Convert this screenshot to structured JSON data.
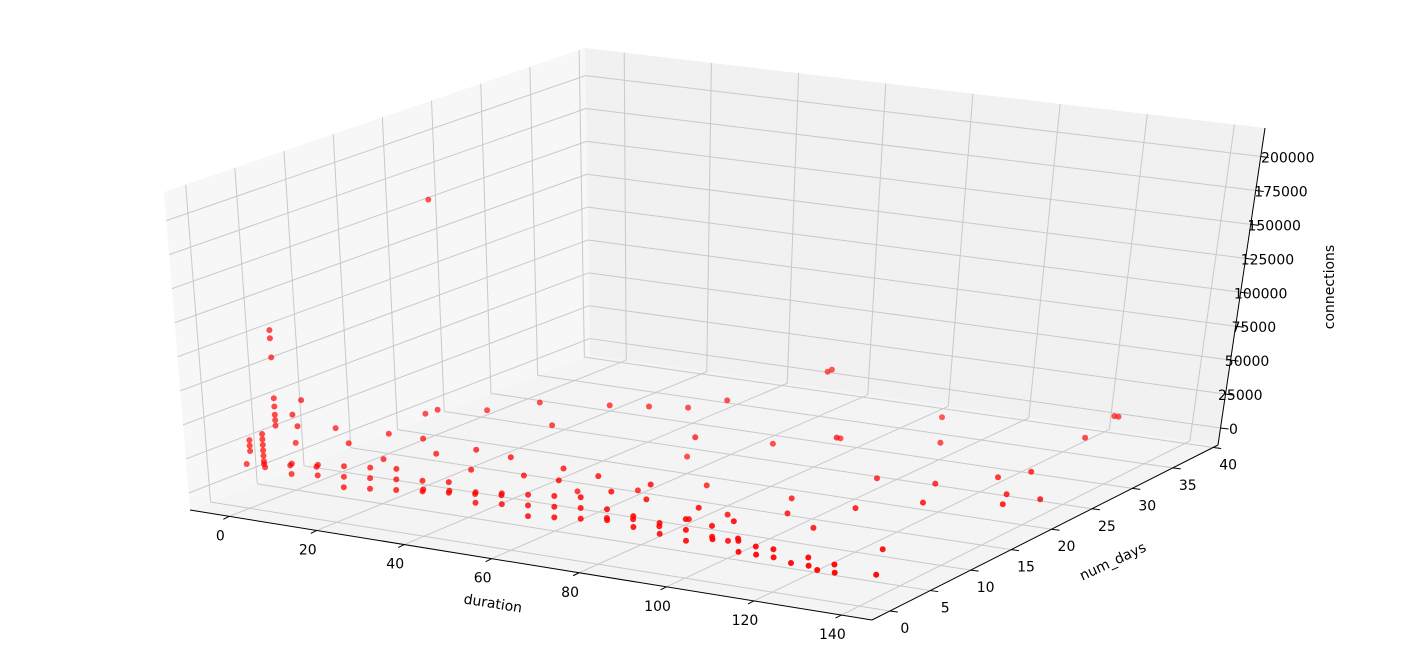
{
  "chart_data": {
    "type": "scatter",
    "projection": "3d",
    "title": "",
    "xlabel": "duration",
    "ylabel": "num_days",
    "zlabel": "connections",
    "xlim": [
      -9,
      147
    ],
    "ylim": [
      -2.2,
      40.6
    ],
    "zlim": [
      -12500,
      221000
    ],
    "xticks": [
      0,
      20,
      40,
      60,
      80,
      100,
      120,
      140
    ],
    "yticks": [
      0,
      5,
      10,
      15,
      20,
      25,
      30,
      35,
      40
    ],
    "zticks": [
      0,
      25000,
      50000,
      75000,
      100000,
      125000,
      150000,
      175000,
      200000
    ],
    "grid": true,
    "marker_color": "#ff0000",
    "points": [
      [
        0,
        0,
        20000
      ],
      [
        2,
        1,
        16000
      ],
      [
        4,
        0,
        22000
      ],
      [
        6,
        2,
        18000
      ],
      [
        8,
        1,
        14000
      ],
      [
        10,
        0,
        24000
      ],
      [
        12,
        2,
        20000
      ],
      [
        14,
        1,
        16000
      ],
      [
        16,
        0,
        26000
      ],
      [
        18,
        2,
        22000
      ],
      [
        20,
        1,
        18000
      ],
      [
        22,
        0,
        14000
      ],
      [
        24,
        2,
        24000
      ],
      [
        26,
        1,
        20000
      ],
      [
        28,
        0,
        16000
      ],
      [
        30,
        2,
        26000
      ],
      [
        32,
        1,
        22000
      ],
      [
        34,
        0,
        18000
      ],
      [
        36,
        2,
        14000
      ],
      [
        38,
        1,
        24000
      ],
      [
        40,
        0,
        20000
      ],
      [
        42,
        2,
        16000
      ],
      [
        44,
        1,
        26000
      ],
      [
        46,
        0,
        22000
      ],
      [
        48,
        2,
        18000
      ],
      [
        50,
        1,
        14000
      ],
      [
        52,
        0,
        24000
      ],
      [
        54,
        2,
        20000
      ],
      [
        56,
        1,
        16000
      ],
      [
        58,
        0,
        26000
      ],
      [
        60,
        2,
        22000
      ],
      [
        62,
        1,
        18000
      ],
      [
        64,
        0,
        14000
      ],
      [
        66,
        2,
        24000
      ],
      [
        68,
        1,
        20000
      ],
      [
        70,
        0,
        16000
      ],
      [
        72,
        2,
        26000
      ],
      [
        74,
        1,
        22000
      ],
      [
        76,
        0,
        18000
      ],
      [
        78,
        2,
        14000
      ],
      [
        80,
        1,
        24000
      ],
      [
        82,
        0,
        20000
      ],
      [
        84,
        2,
        16000
      ],
      [
        86,
        1,
        22000
      ],
      [
        88,
        0,
        18000
      ],
      [
        90,
        2,
        14000
      ],
      [
        92,
        1,
        20000
      ],
      [
        94,
        0,
        16000
      ],
      [
        96,
        2,
        22000
      ],
      [
        98,
        1,
        18000
      ],
      [
        100,
        0,
        14000
      ],
      [
        102,
        2,
        20000
      ],
      [
        104,
        1,
        16000
      ],
      [
        106,
        0,
        18000
      ],
      [
        108,
        2,
        14000
      ],
      [
        110,
        1,
        16000
      ],
      [
        112,
        0,
        12000
      ],
      [
        114,
        1,
        14000
      ],
      [
        116,
        0,
        12000
      ],
      [
        118,
        1,
        14000
      ],
      [
        120,
        0,
        12000
      ],
      [
        124,
        0,
        10000
      ],
      [
        126,
        1,
        12000
      ],
      [
        128,
        0,
        10000
      ],
      [
        130,
        0,
        8000
      ],
      [
        132,
        1,
        10000
      ],
      [
        134,
        0,
        8000
      ],
      [
        5,
        3,
        30000
      ],
      [
        15,
        4,
        32000
      ],
      [
        25,
        3,
        28000
      ],
      [
        35,
        4,
        34000
      ],
      [
        45,
        3,
        30000
      ],
      [
        55,
        4,
        28000
      ],
      [
        65,
        3,
        32000
      ],
      [
        75,
        4,
        26000
      ],
      [
        85,
        3,
        28000
      ],
      [
        95,
        4,
        24000
      ],
      [
        105,
        3,
        22000
      ],
      [
        10,
        5,
        38000
      ],
      [
        20,
        6,
        36000
      ],
      [
        30,
        5,
        40000
      ],
      [
        40,
        6,
        34000
      ],
      [
        50,
        5,
        36000
      ],
      [
        60,
        6,
        30000
      ],
      [
        70,
        5,
        32000
      ],
      [
        80,
        6,
        28000
      ],
      [
        4,
        0,
        24000
      ],
      [
        4,
        0,
        28000
      ],
      [
        4,
        0,
        32000
      ],
      [
        4,
        0,
        36000
      ],
      [
        4,
        0,
        40000
      ],
      [
        4,
        0,
        44000
      ],
      [
        5,
        1,
        48000
      ],
      [
        5,
        1,
        52000
      ],
      [
        5,
        1,
        56000
      ],
      [
        5,
        1,
        62000
      ],
      [
        5,
        1,
        68000
      ],
      [
        5,
        1,
        98000
      ],
      [
        5,
        1,
        112000
      ],
      [
        5,
        1,
        118000
      ],
      [
        9,
        1,
        58000
      ],
      [
        9,
        2,
        66000
      ],
      [
        10,
        1,
        50000
      ],
      [
        1,
        0,
        30000
      ],
      [
        1,
        0,
        34000
      ],
      [
        1,
        0,
        38000
      ],
      [
        18,
        12,
        191500
      ],
      [
        20,
        10,
        40000
      ],
      [
        30,
        12,
        42000
      ],
      [
        38,
        14,
        46000
      ],
      [
        45,
        12,
        38000
      ],
      [
        50,
        16,
        44000
      ],
      [
        25,
        9,
        48000
      ],
      [
        55,
        18,
        40000
      ],
      [
        60,
        20,
        36000
      ],
      [
        70,
        16,
        30000
      ],
      [
        65,
        22,
        38000
      ],
      [
        72,
        30,
        40000
      ],
      [
        73,
        30,
        42000
      ],
      [
        95,
        20,
        30000
      ],
      [
        124,
        25,
        0
      ],
      [
        128,
        27,
        0
      ],
      [
        135,
        20,
        0
      ],
      [
        140,
        22,
        0
      ],
      [
        132,
        22,
        0
      ],
      [
        120,
        18,
        0
      ],
      [
        110,
        15,
        0
      ],
      [
        100,
        12,
        0
      ],
      [
        95,
        15,
        0
      ],
      [
        90,
        10,
        0
      ],
      [
        85,
        8,
        0
      ],
      [
        105,
        20,
        5000
      ],
      [
        115,
        22,
        0
      ],
      [
        130,
        8,
        0
      ],
      [
        138,
        3,
        0
      ],
      [
        125,
        35,
        0
      ],
      [
        122,
        40,
        0
      ],
      [
        123,
        40,
        0
      ],
      [
        100,
        30,
        0
      ],
      [
        80,
        28,
        0
      ],
      [
        70,
        25,
        0
      ],
      [
        60,
        20,
        0
      ],
      [
        90,
        35,
        0
      ],
      [
        75,
        15,
        0
      ],
      [
        65,
        12,
        0
      ],
      [
        55,
        10,
        0
      ],
      [
        110,
        10,
        0
      ],
      [
        100,
        5,
        0
      ]
    ]
  }
}
